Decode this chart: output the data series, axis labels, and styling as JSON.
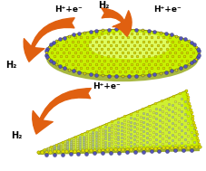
{
  "bg_color": "#ffffff",
  "top_label_left": "H⁺+e⁻",
  "top_label_center": "H₂",
  "top_label_right": "H⁺+e⁻",
  "top_h2_label": "H₂",
  "bottom_label": "H⁺+e⁻",
  "bottom_h2_label": "H₂",
  "yellow_green": "#c8f000",
  "atom_yellow": "#dddd00",
  "atom_blue": "#5555bb",
  "atom_white": "#c8d8b0",
  "atom_mo": "#b0c090",
  "arrow_orange": "#e06010",
  "edge_dark": "#888800"
}
